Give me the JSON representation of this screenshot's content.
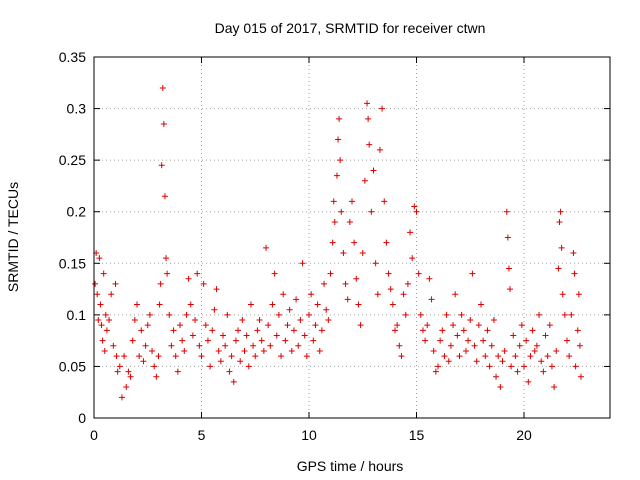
{
  "chart_data": {
    "type": "scatter",
    "title": "Day 015 of 2017, SRMTID for receiver ctwn",
    "xlabel": "GPS time / hours",
    "ylabel": "SRMTID / TECUs",
    "xlim": [
      0,
      24
    ],
    "ylim": [
      0,
      0.35
    ],
    "grid": true,
    "marker": "+",
    "color": "#dd0000",
    "x_ticks": [
      0,
      5,
      10,
      15,
      20
    ],
    "x_tick_labels": [
      "0",
      "5",
      "10",
      "15",
      "20"
    ],
    "y_ticks": [
      0,
      0.05,
      0.1,
      0.15,
      0.2,
      0.25,
      0.3,
      0.35
    ],
    "y_tick_labels": [
      "0",
      "0.05",
      "0.1",
      "0.15",
      "0.2",
      "0.25",
      "0.3",
      "0.35"
    ],
    "series": [
      {
        "name": "SRMTID",
        "points": [
          [
            0.05,
            0.13
          ],
          [
            0.1,
            0.16
          ],
          [
            0.15,
            0.12
          ],
          [
            0.2,
            0.095
          ],
          [
            0.25,
            0.155
          ],
          [
            0.3,
            0.11
          ],
          [
            0.35,
            0.09
          ],
          [
            0.4,
            0.075
          ],
          [
            0.45,
            0.14
          ],
          [
            0.5,
            0.065
          ],
          [
            0.55,
            0.1
          ],
          [
            0.6,
            0.085
          ],
          [
            0.7,
            0.095
          ],
          [
            0.8,
            0.12
          ],
          [
            0.9,
            0.07
          ],
          [
            1.0,
            0.13
          ],
          [
            1.05,
            0.06
          ],
          [
            1.1,
            0.045
          ],
          [
            1.2,
            0.05
          ],
          [
            1.3,
            0.02
          ],
          [
            1.4,
            0.06
          ],
          [
            1.5,
            0.03
          ],
          [
            1.6,
            0.045
          ],
          [
            1.7,
            0.04
          ],
          [
            1.8,
            0.075
          ],
          [
            1.9,
            0.095
          ],
          [
            2.0,
            0.11
          ],
          [
            2.1,
            0.06
          ],
          [
            2.2,
            0.085
          ],
          [
            2.3,
            0.055
          ],
          [
            2.4,
            0.07
          ],
          [
            2.5,
            0.09
          ],
          [
            2.6,
            0.1
          ],
          [
            2.7,
            0.065
          ],
          [
            2.8,
            0.05
          ],
          [
            2.9,
            0.04
          ],
          [
            3.0,
            0.06
          ],
          [
            3.05,
            0.11
          ],
          [
            3.1,
            0.13
          ],
          [
            3.15,
            0.245
          ],
          [
            3.2,
            0.32
          ],
          [
            3.25,
            0.285
          ],
          [
            3.3,
            0.215
          ],
          [
            3.35,
            0.155
          ],
          [
            3.4,
            0.14
          ],
          [
            3.5,
            0.1
          ],
          [
            3.6,
            0.07
          ],
          [
            3.7,
            0.085
          ],
          [
            3.8,
            0.06
          ],
          [
            3.9,
            0.045
          ],
          [
            4.0,
            0.09
          ],
          [
            4.1,
            0.075
          ],
          [
            4.2,
            0.065
          ],
          [
            4.3,
            0.1
          ],
          [
            4.4,
            0.135
          ],
          [
            4.5,
            0.11
          ],
          [
            4.6,
            0.08
          ],
          [
            4.7,
            0.095
          ],
          [
            4.8,
            0.14
          ],
          [
            4.9,
            0.07
          ],
          [
            5.0,
            0.06
          ],
          [
            5.1,
            0.13
          ],
          [
            5.2,
            0.09
          ],
          [
            5.3,
            0.075
          ],
          [
            5.4,
            0.05
          ],
          [
            5.5,
            0.085
          ],
          [
            5.6,
            0.105
          ],
          [
            5.7,
            0.125
          ],
          [
            5.8,
            0.065
          ],
          [
            5.9,
            0.055
          ],
          [
            6.0,
            0.08
          ],
          [
            6.1,
            0.07
          ],
          [
            6.2,
            0.1
          ],
          [
            6.3,
            0.045
          ],
          [
            6.4,
            0.06
          ],
          [
            6.5,
            0.035
          ],
          [
            6.6,
            0.075
          ],
          [
            6.7,
            0.085
          ],
          [
            6.8,
            0.055
          ],
          [
            6.9,
            0.095
          ],
          [
            7.0,
            0.065
          ],
          [
            7.1,
            0.08
          ],
          [
            7.2,
            0.05
          ],
          [
            7.3,
            0.11
          ],
          [
            7.4,
            0.07
          ],
          [
            7.5,
            0.06
          ],
          [
            7.6,
            0.085
          ],
          [
            7.7,
            0.095
          ],
          [
            7.8,
            0.075
          ],
          [
            7.9,
            0.065
          ],
          [
            8.0,
            0.165
          ],
          [
            8.1,
            0.09
          ],
          [
            8.2,
            0.07
          ],
          [
            8.3,
            0.11
          ],
          [
            8.4,
            0.14
          ],
          [
            8.5,
            0.08
          ],
          [
            8.6,
            0.1
          ],
          [
            8.7,
            0.06
          ],
          [
            8.8,
            0.12
          ],
          [
            8.9,
            0.075
          ],
          [
            9.0,
            0.09
          ],
          [
            9.1,
            0.105
          ],
          [
            9.2,
            0.065
          ],
          [
            9.3,
            0.085
          ],
          [
            9.4,
            0.115
          ],
          [
            9.5,
            0.07
          ],
          [
            9.6,
            0.095
          ],
          [
            9.7,
            0.15
          ],
          [
            9.8,
            0.08
          ],
          [
            9.9,
            0.06
          ],
          [
            10.0,
            0.1
          ],
          [
            10.1,
            0.12
          ],
          [
            10.2,
            0.075
          ],
          [
            10.3,
            0.09
          ],
          [
            10.4,
            0.11
          ],
          [
            10.5,
            0.065
          ],
          [
            10.6,
            0.085
          ],
          [
            10.7,
            0.13
          ],
          [
            10.8,
            0.105
          ],
          [
            10.9,
            0.095
          ],
          [
            11.0,
            0.14
          ],
          [
            11.1,
            0.17
          ],
          [
            11.15,
            0.21
          ],
          [
            11.2,
            0.19
          ],
          [
            11.3,
            0.235
          ],
          [
            11.35,
            0.27
          ],
          [
            11.4,
            0.29
          ],
          [
            11.45,
            0.25
          ],
          [
            11.5,
            0.2
          ],
          [
            11.6,
            0.16
          ],
          [
            11.7,
            0.13
          ],
          [
            11.8,
            0.115
          ],
          [
            11.9,
            0.19
          ],
          [
            12.0,
            0.21
          ],
          [
            12.1,
            0.17
          ],
          [
            12.2,
            0.135
          ],
          [
            12.3,
            0.11
          ],
          [
            12.4,
            0.09
          ],
          [
            12.5,
            0.16
          ],
          [
            12.6,
            0.23
          ],
          [
            12.7,
            0.305
          ],
          [
            12.75,
            0.29
          ],
          [
            12.8,
            0.265
          ],
          [
            12.9,
            0.2
          ],
          [
            13.0,
            0.24
          ],
          [
            13.1,
            0.15
          ],
          [
            13.2,
            0.12
          ],
          [
            13.3,
            0.26
          ],
          [
            13.4,
            0.3
          ],
          [
            13.5,
            0.21
          ],
          [
            13.6,
            0.17
          ],
          [
            13.7,
            0.14
          ],
          [
            13.8,
            0.125
          ],
          [
            13.9,
            0.11
          ],
          [
            14.0,
            0.085
          ],
          [
            14.1,
            0.09
          ],
          [
            14.2,
            0.07
          ],
          [
            14.3,
            0.06
          ],
          [
            14.4,
            0.12
          ],
          [
            14.5,
            0.1
          ],
          [
            14.6,
            0.13
          ],
          [
            14.7,
            0.18
          ],
          [
            14.8,
            0.155
          ],
          [
            14.9,
            0.205
          ],
          [
            15.0,
            0.2
          ],
          [
            15.1,
            0.14
          ],
          [
            15.2,
            0.1
          ],
          [
            15.3,
            0.085
          ],
          [
            15.4,
            0.075
          ],
          [
            15.5,
            0.09
          ],
          [
            15.6,
            0.135
          ],
          [
            15.7,
            0.115
          ],
          [
            15.8,
            0.065
          ],
          [
            15.9,
            0.045
          ],
          [
            16.0,
            0.05
          ],
          [
            16.1,
            0.075
          ],
          [
            16.2,
            0.085
          ],
          [
            16.3,
            0.06
          ],
          [
            16.4,
            0.1
          ],
          [
            16.5,
            0.055
          ],
          [
            16.6,
            0.07
          ],
          [
            16.7,
            0.09
          ],
          [
            16.8,
            0.12
          ],
          [
            16.9,
            0.08
          ],
          [
            17.0,
            0.06
          ],
          [
            17.1,
            0.1
          ],
          [
            17.2,
            0.085
          ],
          [
            17.3,
            0.065
          ],
          [
            17.4,
            0.075
          ],
          [
            17.5,
            0.095
          ],
          [
            17.6,
            0.14
          ],
          [
            17.7,
            0.07
          ],
          [
            17.8,
            0.055
          ],
          [
            17.9,
            0.09
          ],
          [
            18.0,
            0.11
          ],
          [
            18.1,
            0.075
          ],
          [
            18.2,
            0.06
          ],
          [
            18.3,
            0.085
          ],
          [
            18.4,
            0.05
          ],
          [
            18.5,
            0.07
          ],
          [
            18.6,
            0.095
          ],
          [
            18.7,
            0.04
          ],
          [
            18.8,
            0.06
          ],
          [
            18.9,
            0.03
          ],
          [
            19.0,
            0.055
          ],
          [
            19.1,
            0.065
          ],
          [
            19.2,
            0.2
          ],
          [
            19.25,
            0.175
          ],
          [
            19.3,
            0.145
          ],
          [
            19.35,
            0.125
          ],
          [
            19.4,
            0.05
          ],
          [
            19.5,
            0.08
          ],
          [
            19.6,
            0.06
          ],
          [
            19.7,
            0.045
          ],
          [
            19.8,
            0.07
          ],
          [
            19.9,
            0.09
          ],
          [
            20.0,
            0.05
          ],
          [
            20.1,
            0.075
          ],
          [
            20.2,
            0.035
          ],
          [
            20.3,
            0.06
          ],
          [
            20.4,
            0.085
          ],
          [
            20.5,
            0.065
          ],
          [
            20.6,
            0.07
          ],
          [
            20.7,
            0.1
          ],
          [
            20.8,
            0.055
          ],
          [
            20.9,
            0.045
          ],
          [
            21.0,
            0.08
          ],
          [
            21.1,
            0.06
          ],
          [
            21.2,
            0.09
          ],
          [
            21.3,
            0.05
          ],
          [
            21.4,
            0.03
          ],
          [
            21.5,
            0.065
          ],
          [
            21.6,
            0.145
          ],
          [
            21.65,
            0.19
          ],
          [
            21.7,
            0.2
          ],
          [
            21.75,
            0.165
          ],
          [
            21.8,
            0.12
          ],
          [
            21.9,
            0.1
          ],
          [
            22.0,
            0.075
          ],
          [
            22.1,
            0.06
          ],
          [
            22.2,
            0.1
          ],
          [
            22.3,
            0.16
          ],
          [
            22.35,
            0.14
          ],
          [
            22.4,
            0.05
          ],
          [
            22.5,
            0.085
          ],
          [
            22.55,
            0.12
          ],
          [
            22.6,
            0.07
          ],
          [
            22.65,
            0.04
          ]
        ]
      }
    ]
  }
}
